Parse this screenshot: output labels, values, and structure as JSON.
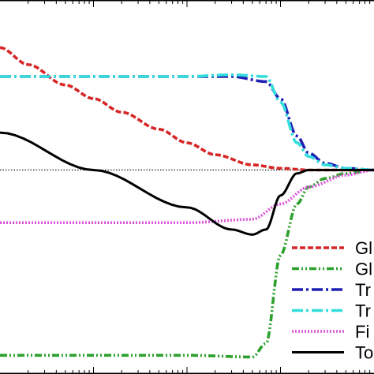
{
  "chart_data": {
    "type": "line",
    "title": "",
    "xlabel": "",
    "ylabel": "",
    "x_scale": "log",
    "xlim": [
      1,
      10000
    ],
    "ylim": [
      -1.2,
      1.0
    ],
    "grid": false,
    "legend_placement": "bottom-right",
    "legend_labels_visible": [
      "Gl",
      "Gl",
      "Tr",
      "Tr",
      "Fi",
      "To"
    ],
    "reference_line": {
      "y": 0.0,
      "style": "dotted",
      "color": "#000000"
    },
    "series": [
      {
        "name": "Gl",
        "color": "#d62728",
        "style": "dashed",
        "x": [
          1,
          2,
          5,
          10,
          20,
          50,
          100,
          200,
          500,
          1000,
          2000,
          5000,
          10000
        ],
        "y": [
          0.72,
          0.62,
          0.5,
          0.42,
          0.34,
          0.24,
          0.16,
          0.09,
          0.03,
          0.01,
          0.0,
          0.0,
          0.0
        ]
      },
      {
        "name": "Gl",
        "color": "#2ca02c",
        "style": "dash-dot-dot",
        "x": [
          1,
          10,
          100,
          500,
          700,
          1000,
          1500,
          2000,
          3000,
          5000,
          10000
        ],
        "y": [
          -1.09,
          -1.09,
          -1.09,
          -1.1,
          -1.02,
          -0.5,
          -0.2,
          -0.1,
          -0.05,
          -0.02,
          0.0
        ]
      },
      {
        "name": "Tr",
        "color": "#1f1fb4",
        "style": "dash-dot",
        "x": [
          1,
          10,
          100,
          300,
          700,
          1000,
          1500,
          2000,
          3000,
          5000,
          10000
        ],
        "y": [
          0.55,
          0.55,
          0.55,
          0.55,
          0.52,
          0.42,
          0.2,
          0.1,
          0.04,
          0.01,
          0.0
        ]
      },
      {
        "name": "Tr",
        "color": "#33dddd",
        "style": "dash-dot",
        "x": [
          1,
          10,
          100,
          300,
          700,
          1000,
          1500,
          2000,
          3000,
          5000,
          10000
        ],
        "y": [
          0.55,
          0.55,
          0.55,
          0.56,
          0.55,
          0.4,
          0.16,
          0.08,
          0.03,
          0.01,
          0.0
        ]
      },
      {
        "name": "Fi",
        "color": "#dd55dd",
        "style": "dotted",
        "x": [
          1,
          10,
          100,
          500,
          1000,
          2000,
          5000,
          10000
        ],
        "y": [
          -0.31,
          -0.31,
          -0.31,
          -0.29,
          -0.2,
          -0.1,
          -0.03,
          0.0
        ]
      },
      {
        "name": "To",
        "color": "#000000",
        "style": "solid",
        "x": [
          1,
          10,
          100,
          300,
          500,
          700,
          1000,
          1500,
          2000,
          3000,
          5000,
          10000
        ],
        "y": [
          0.22,
          0.0,
          -0.22,
          -0.35,
          -0.38,
          -0.35,
          -0.15,
          -0.02,
          0.0,
          0.0,
          0.0,
          0.0
        ]
      }
    ]
  }
}
